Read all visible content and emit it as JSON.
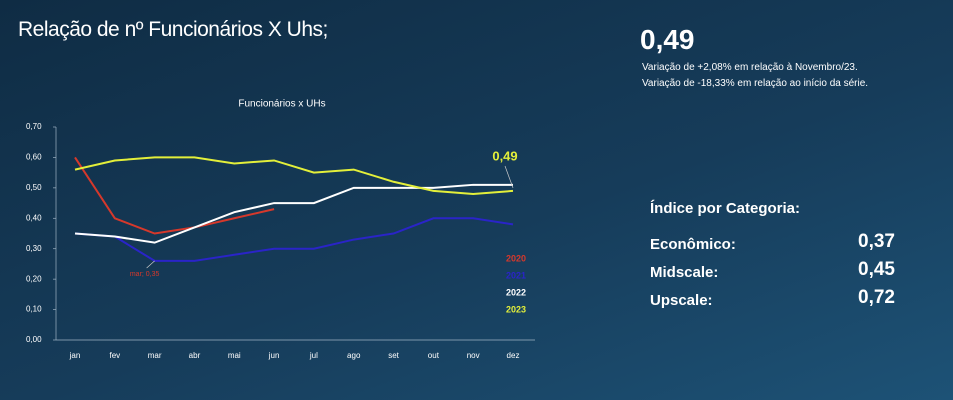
{
  "title": "Relação de nº Funcionários X Uhs;",
  "chart_data": {
    "type": "line",
    "title": "Funcionários x UHs",
    "categories": [
      "jan",
      "fev",
      "mar",
      "abr",
      "mai",
      "jun",
      "jul",
      "ago",
      "set",
      "out",
      "nov",
      "dez"
    ],
    "series": [
      {
        "name": "2020",
        "color": "#d6382b",
        "values": [
          0.6,
          0.4,
          0.35,
          0.37,
          0.4,
          0.43,
          null,
          null,
          null,
          null,
          null,
          null
        ]
      },
      {
        "name": "2021",
        "color": "#2a24c8",
        "values": [
          0.35,
          0.34,
          0.26,
          0.26,
          0.28,
          0.3,
          0.3,
          0.33,
          0.35,
          0.4,
          0.4,
          0.38
        ]
      },
      {
        "name": "2022",
        "color": "#ffffff",
        "values": [
          0.35,
          0.34,
          0.32,
          0.37,
          0.42,
          0.45,
          0.45,
          0.5,
          0.5,
          0.5,
          0.51,
          0.51
        ]
      },
      {
        "name": "2023",
        "color": "#e3ef3a",
        "values": [
          0.56,
          0.59,
          0.6,
          0.6,
          0.58,
          0.59,
          0.55,
          0.56,
          0.52,
          0.49,
          0.48,
          0.49
        ]
      }
    ],
    "ylim": [
      0,
      0.7
    ],
    "yticks": [
      {
        "value": 0,
        "label": "0,00"
      },
      {
        "value": 0.1,
        "label": "0,10"
      },
      {
        "value": 0.2,
        "label": "0,20"
      },
      {
        "value": 0.3,
        "label": "0,30"
      },
      {
        "value": 0.4,
        "label": "0,40"
      },
      {
        "value": 0.5,
        "label": "0,50"
      },
      {
        "value": 0.6,
        "label": "0,60"
      },
      {
        "value": 0.7,
        "label": "0,70"
      }
    ],
    "grid": false,
    "annotations": [
      {
        "text": "mar; 0,35"
      },
      {
        "text": "0,49"
      }
    ]
  },
  "summary": {
    "value": "0,49",
    "notes": [
      "Variação de +2,08% em relação à Novembro/23.",
      "Variação de -18,33% em relação ao início da série."
    ],
    "heading": "Índice por Categoria:",
    "rows": [
      [
        "Econômico:",
        "0,37"
      ],
      [
        "Midscale:",
        "0,45"
      ],
      [
        "Upscale:",
        "0,72"
      ]
    ]
  }
}
